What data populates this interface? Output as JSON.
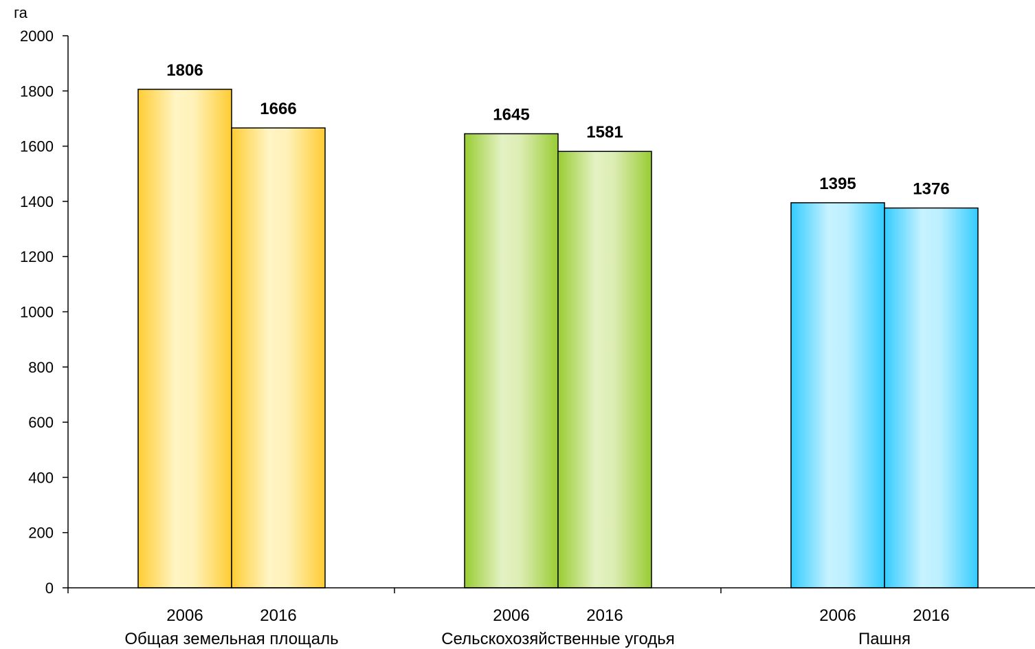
{
  "chart_data": {
    "type": "bar",
    "y_unit": "га",
    "ylim": [
      0,
      2000
    ],
    "y_ticks": [
      0,
      200,
      400,
      600,
      800,
      1000,
      1200,
      1400,
      1600,
      1800,
      2000
    ],
    "grid": false,
    "groups": [
      {
        "name": "Общая земельная площаль",
        "color": "#FFCC33",
        "bars": [
          {
            "label": "2006",
            "value": 1806
          },
          {
            "label": "2016",
            "value": 1666
          }
        ]
      },
      {
        "name": "Сельскохозяйственные угодья",
        "color": "#99CC33",
        "bars": [
          {
            "label": "2006",
            "value": 1645
          },
          {
            "label": "2016",
            "value": 1581
          }
        ]
      },
      {
        "name": "Пашня",
        "color": "#33CCFF",
        "bars": [
          {
            "label": "2006",
            "value": 1395
          },
          {
            "label": "2016",
            "value": 1376
          }
        ]
      }
    ]
  }
}
